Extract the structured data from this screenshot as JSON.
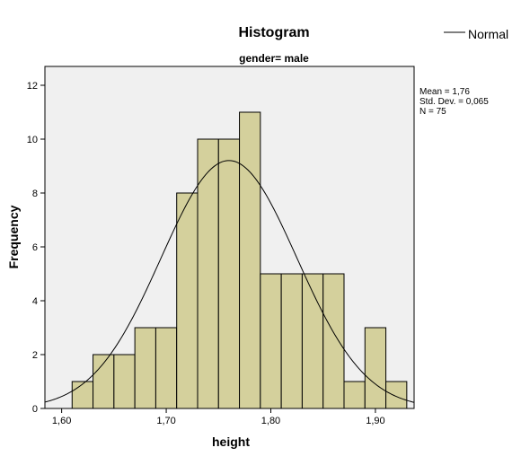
{
  "chart_data": {
    "type": "bar",
    "title": "Histogram",
    "subtitle": "gender= male",
    "xlabel": "height",
    "ylabel": "Frequency",
    "legend": {
      "entries": [
        "Normal"
      ],
      "placement": "top-right"
    },
    "stats": [
      "Mean = 1,76",
      "Std. Dev. = 0,065",
      "N = 75"
    ],
    "mean": 1.76,
    "std_dev": 0.065,
    "n": 75,
    "bin_width": 0.02,
    "bin_starts": [
      1.61,
      1.63,
      1.65,
      1.67,
      1.69,
      1.71,
      1.73,
      1.75,
      1.77,
      1.79,
      1.81,
      1.83,
      1.85,
      1.87,
      1.89,
      1.91
    ],
    "values": [
      1,
      2,
      2,
      3,
      3,
      8,
      10,
      10,
      11,
      5,
      5,
      5,
      5,
      1,
      3,
      1
    ],
    "xlim": [
      1.584,
      1.937
    ],
    "ylim": [
      0,
      12.7
    ],
    "x_ticks": [
      1.6,
      1.7,
      1.8,
      1.9
    ],
    "x_tick_labels": [
      "1,60",
      "1,70",
      "1,80",
      "1,90"
    ],
    "y_ticks": [
      0,
      2,
      4,
      6,
      8,
      10,
      12
    ],
    "y_tick_labels": [
      "0",
      "2",
      "4",
      "6",
      "8",
      "10",
      "12"
    ],
    "grid": false,
    "colors": {
      "bar_fill": "#d4d09c",
      "bar_stroke": "#000000",
      "plot_background": "#f0f0f0",
      "curve": "#000000"
    }
  }
}
